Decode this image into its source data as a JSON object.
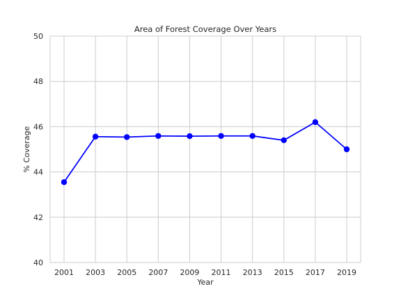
{
  "chart_data": {
    "type": "line",
    "title": "Area of Forest Coverage Over Years",
    "xlabel": "Year",
    "ylabel": "% Coverage",
    "x": [
      2001,
      2003,
      2005,
      2007,
      2009,
      2011,
      2013,
      2015,
      2017,
      2019
    ],
    "xticks": [
      "2001",
      "2003",
      "2005",
      "2007",
      "2009",
      "2011",
      "2013",
      "2015",
      "2017",
      "2019"
    ],
    "series": [
      {
        "values": [
          43.55,
          45.56,
          45.54,
          45.59,
          45.58,
          45.59,
          45.59,
          45.4,
          46.2,
          45.0
        ],
        "color": "#0000ff",
        "marker": "circle"
      }
    ],
    "ylim": [
      40,
      50
    ],
    "yticks": [
      40,
      42,
      44,
      46,
      48,
      50
    ],
    "grid": true,
    "background": "#ffffff",
    "grid_color": "#cccccc"
  }
}
